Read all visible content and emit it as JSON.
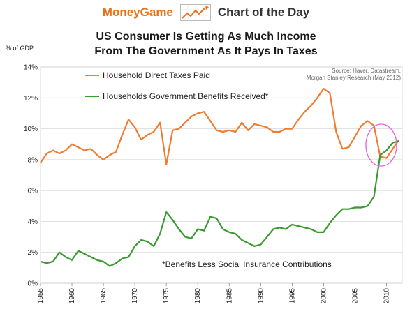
{
  "header": {
    "brand": "MoneyGame",
    "chart_of_day": "Chart of the Day",
    "logo_icon": "chart-arrow-icon",
    "brand_color": "#e8721c"
  },
  "chart_data": {
    "type": "line",
    "title_line1": "US Consumer Is Getting As Much Income",
    "title_line2": "From The Government As It Pays In Taxes",
    "ylabel": "% of GDP",
    "ylim": [
      0,
      14
    ],
    "xlim": [
      1955,
      2012.5
    ],
    "yticks": [
      "0%",
      "2%",
      "4%",
      "6%",
      "8%",
      "10%",
      "12%",
      "14%"
    ],
    "xticks": [
      "1955",
      "1960",
      "1965",
      "1970",
      "1975",
      "1980",
      "1985",
      "1990",
      "1995",
      "2000",
      "2005",
      "2010"
    ],
    "grid": true,
    "source_line1": "Source: Haver, Datastream,",
    "source_line2": "Morgan Stanley Research (May 2012)",
    "annotation": "*Benefits Less Social Insurance Contributions",
    "series": [
      {
        "name": "Household Direct Taxes Paid",
        "color": "#ee7d31",
        "x": [
          1955,
          1956,
          1957,
          1958,
          1959,
          1960,
          1961,
          1962,
          1963,
          1964,
          1965,
          1966,
          1967,
          1968,
          1969,
          1970,
          1971,
          1972,
          1973,
          1974,
          1975,
          1976,
          1977,
          1978,
          1979,
          1980,
          1981,
          1982,
          1983,
          1984,
          1985,
          1986,
          1987,
          1988,
          1989,
          1990,
          1991,
          1992,
          1993,
          1994,
          1995,
          1996,
          1997,
          1998,
          1999,
          2000,
          2001,
          2002,
          2003,
          2004,
          2005,
          2006,
          2007,
          2008,
          2009,
          2010,
          2011,
          2012
        ],
        "y": [
          7.8,
          8.4,
          8.6,
          8.4,
          8.6,
          9.0,
          8.8,
          8.6,
          8.7,
          8.3,
          8.0,
          8.3,
          8.5,
          9.6,
          10.6,
          10.1,
          9.3,
          9.6,
          9.8,
          10.4,
          7.7,
          9.9,
          10.0,
          10.4,
          10.8,
          11.0,
          11.1,
          10.5,
          9.9,
          9.8,
          9.9,
          9.8,
          10.4,
          9.9,
          10.3,
          10.2,
          10.1,
          9.8,
          9.8,
          10.0,
          10.0,
          10.6,
          11.1,
          11.5,
          12.0,
          12.6,
          12.3,
          9.8,
          8.7,
          8.8,
          9.5,
          10.2,
          10.5,
          10.2,
          8.2,
          8.1,
          8.7,
          9.3
        ]
      },
      {
        "name": "Households Government Benefits Received*",
        "color": "#3a9a2f",
        "x": [
          1955,
          1956,
          1957,
          1958,
          1959,
          1960,
          1961,
          1962,
          1963,
          1964,
          1965,
          1966,
          1967,
          1968,
          1969,
          1970,
          1971,
          1972,
          1973,
          1974,
          1975,
          1976,
          1977,
          1978,
          1979,
          1980,
          1981,
          1982,
          1983,
          1984,
          1985,
          1986,
          1987,
          1988,
          1989,
          1990,
          1991,
          1992,
          1993,
          1994,
          1995,
          1996,
          1997,
          1998,
          1999,
          2000,
          2001,
          2002,
          2003,
          2004,
          2005,
          2006,
          2007,
          2008,
          2009,
          2010,
          2011,
          2012
        ],
        "y": [
          1.4,
          1.3,
          1.4,
          2.0,
          1.7,
          1.5,
          2.1,
          1.9,
          1.7,
          1.5,
          1.4,
          1.1,
          1.3,
          1.6,
          1.7,
          2.4,
          2.8,
          2.7,
          2.4,
          3.2,
          4.6,
          4.1,
          3.5,
          3.0,
          2.9,
          3.5,
          3.4,
          4.3,
          4.2,
          3.5,
          3.3,
          3.2,
          2.8,
          2.6,
          2.4,
          2.5,
          3.0,
          3.5,
          3.6,
          3.5,
          3.8,
          3.7,
          3.6,
          3.5,
          3.3,
          3.3,
          3.9,
          4.4,
          4.8,
          4.8,
          4.9,
          4.9,
          5.0,
          5.6,
          8.3,
          8.6,
          9.1,
          9.2
        ]
      }
    ]
  }
}
